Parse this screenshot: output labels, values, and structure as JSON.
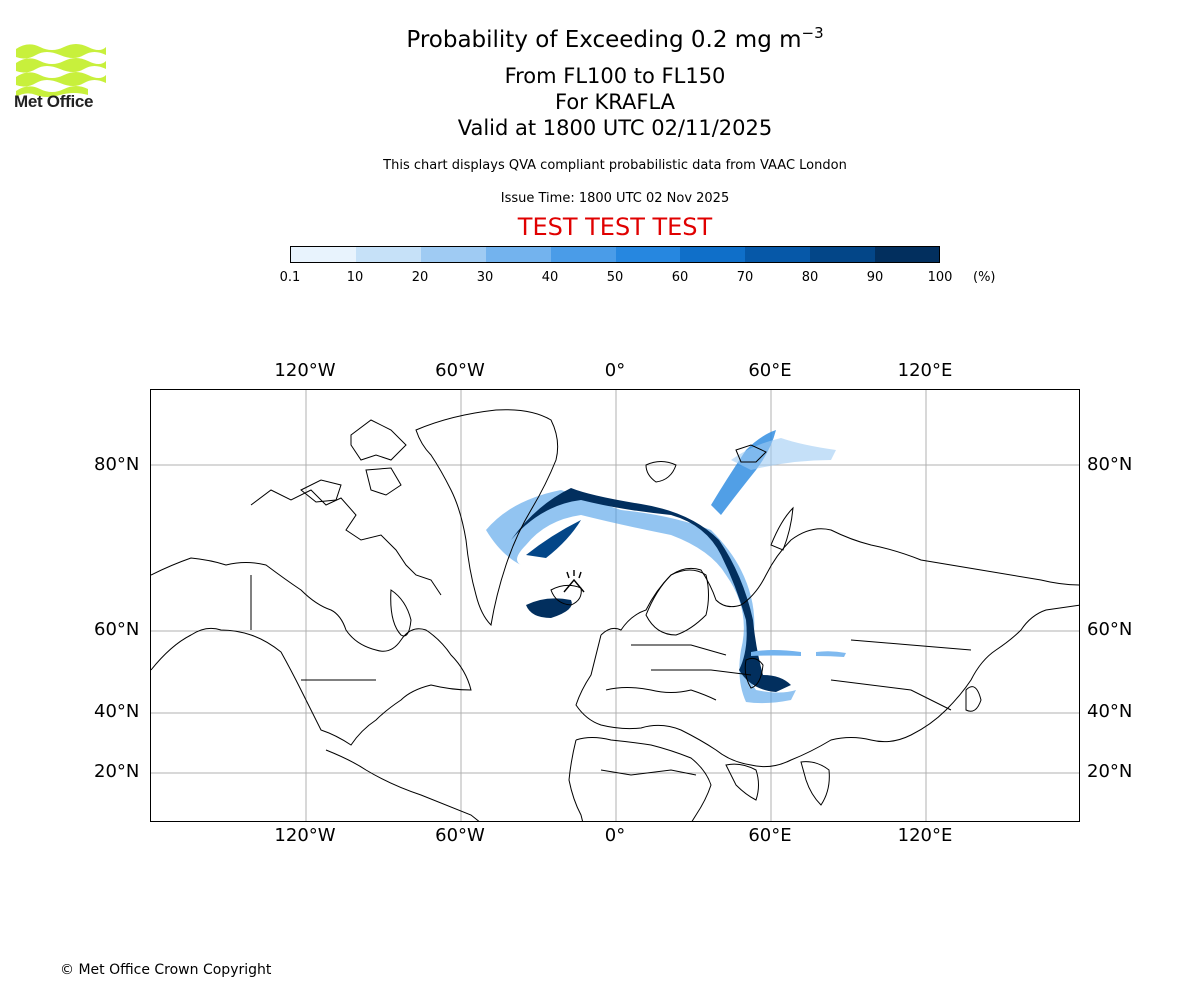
{
  "logo": {
    "text": "Met Office",
    "accent": "#c8f03c"
  },
  "title": {
    "line1_prefix": "Probability of Exceeding 0.2 mg m",
    "line1_exp": "−3",
    "line2": "From FL100 to FL150",
    "line3": "For KRAFLA",
    "line4": "Valid at 1800 UTC 02/11/2025",
    "description": "This chart displays QVA compliant probabilistic data from VAAC London",
    "issue_time": "Issue Time: 1800 UTC 02 Nov 2025",
    "test_banner": "TEST TEST TEST",
    "test_color": "#e00000"
  },
  "colorbar": {
    "unit": "(%)",
    "ticks": [
      "0.1",
      "10",
      "20",
      "30",
      "40",
      "50",
      "60",
      "70",
      "80",
      "90",
      "100"
    ],
    "colors": [
      "#e8f3fd",
      "#c6e1f8",
      "#9fcbf3",
      "#73b3ee",
      "#4a9ce8",
      "#2687e0",
      "#0f6fc9",
      "#0658a8",
      "#034688",
      "#022f5e"
    ]
  },
  "map": {
    "lon_labels": [
      "120°W",
      "60°W",
      "0°",
      "60°E",
      "120°E"
    ],
    "lat_labels": [
      "80°N",
      "60°N",
      "40°N",
      "20°N"
    ],
    "volcano_marker": "KRAFLA"
  },
  "footer": {
    "copyright": "© Met Office Crown Copyright"
  }
}
